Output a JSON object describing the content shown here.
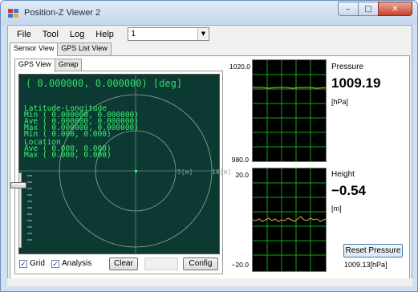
{
  "window": {
    "title": "Position-Z Viewer 2",
    "btn_min": "–",
    "btn_max": "□",
    "btn_close": "✕"
  },
  "menu": {
    "items": [
      "File",
      "Tool",
      "Log",
      "Help"
    ],
    "combo_value": "1"
  },
  "tabs_top": [
    "Sensor View",
    "GPS List View"
  ],
  "tabs_inner": [
    "GPS View",
    "Gmap"
  ],
  "gps": {
    "header": "( 0.000000, 0.000000) [deg]",
    "lines": [
      "Latitude-Longitude",
      "Min ( 0.000000, 0.000000)",
      "Ave ( 0.000000, 0.000000)",
      "Max ( 0.000000, 0.000000)",
      "Min ( 0.000, 0.000)",
      "Location",
      "Ave ( 0.000, 0.000)",
      "Max ( 0.000, 0.000)"
    ],
    "ring_labels": [
      "5[m]",
      "10[m]"
    ]
  },
  "controls": {
    "grid_label": "Grid",
    "grid_checked": true,
    "analysis_label": "Analysis",
    "analysis_checked": true,
    "clear_label": "Clear",
    "config_label": "Config"
  },
  "pressure": {
    "title": "Pressure",
    "value": "1009.19",
    "unit": "[hPa]",
    "axis_max": "1020.0",
    "axis_min": "980.0"
  },
  "height": {
    "title": "Height",
    "value": "−0.54",
    "unit": "[m]",
    "axis_max": "20.0",
    "axis_min": "−20.0",
    "reset_label": "Reset Pressure",
    "reset_value": "1009.13[hPa]"
  },
  "colors": {
    "gps_bg": "#0c3a33",
    "gps_text": "#3ef072",
    "graph_grid": "#12a51a",
    "graph_trace": "#d7b336"
  }
}
